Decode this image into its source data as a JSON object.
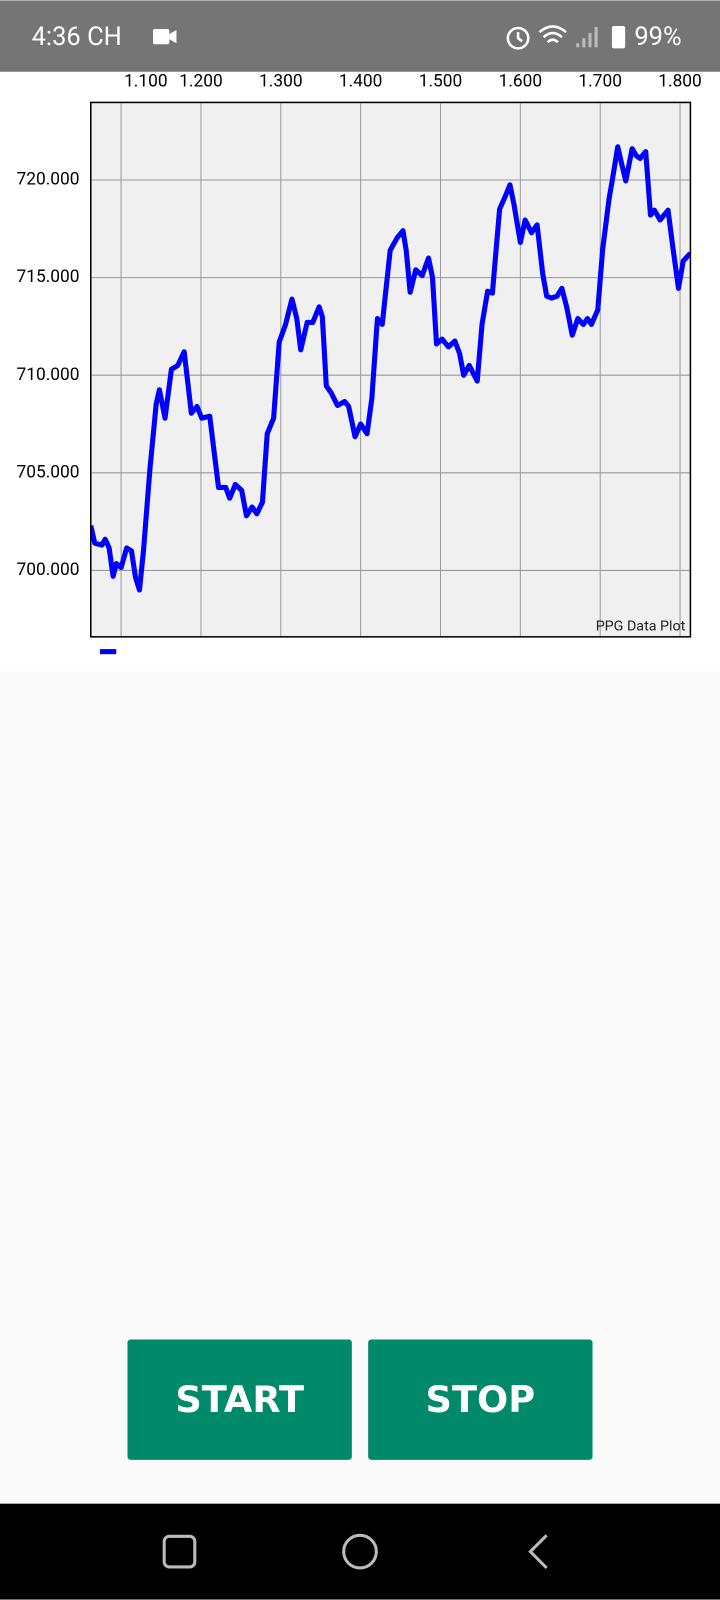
{
  "status_bar": {
    "time": "4:36 CH",
    "battery": "99%"
  },
  "chart_data": {
    "type": "line",
    "annotation": "PPG Data Plot",
    "x": [
      1062,
      1067,
      1076,
      1080,
      1085,
      1090,
      1094,
      1100,
      1107,
      1113,
      1118,
      1123,
      1128,
      1136,
      1144,
      1148,
      1155,
      1163,
      1171,
      1179,
      1188,
      1195,
      1201,
      1211,
      1222,
      1231,
      1236,
      1243,
      1251,
      1257,
      1264,
      1270,
      1277,
      1283,
      1291,
      1298,
      1306,
      1314,
      1320,
      1325,
      1333,
      1340,
      1348,
      1352,
      1357,
      1363,
      1371,
      1380,
      1385,
      1393,
      1400,
      1408,
      1414,
      1421,
      1427,
      1437,
      1446,
      1453,
      1457,
      1462,
      1469,
      1477,
      1485,
      1490,
      1495,
      1502,
      1510,
      1518,
      1524,
      1529,
      1536,
      1546,
      1552,
      1559,
      1565,
      1574,
      1582,
      1587,
      1592,
      1600,
      1606,
      1614,
      1621,
      1628,
      1633,
      1639,
      1646,
      1652,
      1658,
      1665,
      1672,
      1679,
      1684,
      1689,
      1697,
      1703,
      1711,
      1716,
      1722,
      1727,
      1732,
      1740,
      1745,
      1750,
      1757,
      1763,
      1768,
      1775,
      1785,
      1791,
      1798,
      1804,
      1813
    ],
    "series": [
      {
        "color": "#0000ff",
        "values": [
          702300,
          701400,
          701300,
          701600,
          701150,
          699700,
          700350,
          700150,
          701150,
          701000,
          699650,
          699000,
          701000,
          705150,
          708550,
          709250,
          707800,
          710300,
          710500,
          711200,
          708050,
          708400,
          707800,
          707900,
          704250,
          704250,
          703700,
          704400,
          704100,
          702800,
          703250,
          702900,
          703500,
          707000,
          707800,
          711700,
          712600,
          713900,
          712900,
          711300,
          712700,
          712700,
          713500,
          713000,
          709450,
          709100,
          708450,
          708650,
          708400,
          706850,
          707500,
          707000,
          708800,
          712900,
          712600,
          716400,
          717050,
          717400,
          716400,
          714250,
          715400,
          715100,
          716000,
          715000,
          711600,
          711850,
          711450,
          711750,
          711100,
          710000,
          710500,
          709700,
          712600,
          714300,
          714200,
          718500,
          719250,
          719750,
          718750,
          716800,
          717950,
          717300,
          717700,
          715200,
          714050,
          713950,
          714050,
          714450,
          713500,
          712050,
          712900,
          712600,
          712900,
          712600,
          713350,
          716400,
          719000,
          720200,
          721700,
          720800,
          719950,
          721600,
          721250,
          721100,
          721450,
          718200,
          718450,
          717950,
          718450,
          716550,
          714450,
          715850,
          716250
        ]
      }
    ],
    "xlim": [
      1062,
      1813
    ],
    "xticks": [
      {
        "value": 1100,
        "label": "1.100"
      },
      {
        "value": 1200,
        "label": "1.200"
      },
      {
        "value": 1300,
        "label": "1.300"
      },
      {
        "value": 1400,
        "label": "1.400"
      },
      {
        "value": 1500,
        "label": "1.500"
      },
      {
        "value": 1600,
        "label": "1.600"
      },
      {
        "value": 1700,
        "label": "1.700"
      },
      {
        "value": 1800,
        "label": "1.800"
      }
    ],
    "ylim": [
      696600,
      723970
    ],
    "yticks": [
      {
        "value": 700000,
        "label": "700.000"
      },
      {
        "value": 705000,
        "label": "705.000"
      },
      {
        "value": 710000,
        "label": "710.000"
      },
      {
        "value": 715000,
        "label": "715.000"
      },
      {
        "value": 720000,
        "label": "720.000"
      }
    ],
    "grid": true
  },
  "buttons": [
    "START",
    "STOP"
  ]
}
